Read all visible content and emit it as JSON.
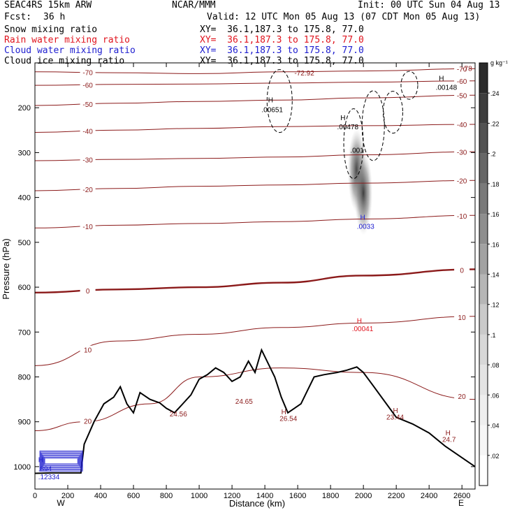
{
  "header": {
    "model": "SEAC4RS 15km ARW",
    "center": "NCAR/MMM",
    "init": "Init: 00 UTC Sun 04 Aug 13",
    "fcst_label": "Fcst:",
    "fcst_value": "36 h",
    "valid": "Valid: 12 UTC Mon 05 Aug 13 (07 CDT Mon 05 Aug 13)",
    "fields": [
      {
        "name": "Snow mixing ratio",
        "color": "#000000",
        "xy": "XY=  36.1,187.3 to 175.8, 77.0"
      },
      {
        "name": "Rain water mixing ratio",
        "color": "#e0141e",
        "xy": "XY=  36.1,187.3 to 175.8, 77.0"
      },
      {
        "name": "Cloud water mixing ratio",
        "color": "#2020d0",
        "xy": "XY=  36.1,187.3 to 175.8, 77.0"
      },
      {
        "name": "Cloud ice mixing ratio",
        "color": "#000000",
        "xy": "XY=  36.1,187.3 to 175.8, 77.0"
      }
    ]
  },
  "chart_data": {
    "type": "cross-section contour",
    "xlabel": "Distance (km)",
    "ylabel": "Pressure (hPa)",
    "xlim": [
      0,
      2680
    ],
    "ylim": [
      1050,
      100
    ],
    "x_ticks": [
      0,
      200,
      400,
      600,
      800,
      1000,
      1200,
      1400,
      1600,
      1800,
      2000,
      2200,
      2400,
      2600
    ],
    "y_ticks": [
      200,
      300,
      400,
      500,
      600,
      700,
      800,
      900,
      1000
    ],
    "end_labels": {
      "left": "W",
      "right": "E"
    },
    "temperature_isotherms_C": {
      "color": "#8b1a1a",
      "levels": [
        -70,
        -60,
        -50,
        -40,
        -30,
        -20,
        -10,
        0,
        10,
        20
      ],
      "labels": [
        "-70",
        "-60",
        "-50",
        "-40",
        "-30",
        "-20",
        "-10",
        "0",
        "10",
        "20"
      ],
      "pressure_hPa": [
        {
          "level": -70,
          "points": [
            [
              0,
              120
            ],
            [
              500,
              122
            ],
            [
              1000,
              124
            ],
            [
              1500,
              120
            ],
            [
              2000,
              118
            ],
            [
              2680,
              113
            ]
          ]
        },
        {
          "level": -60,
          "points": [
            [
              0,
              150
            ],
            [
              500,
              148
            ],
            [
              1000,
              147
            ],
            [
              1500,
              145
            ],
            [
              2000,
              143
            ],
            [
              2680,
              140
            ]
          ]
        },
        {
          "level": -50,
          "points": [
            [
              0,
              195
            ],
            [
              500,
              190
            ],
            [
              1000,
              186
            ],
            [
              1500,
              183
            ],
            [
              2000,
              178
            ],
            [
              2680,
              172
            ]
          ]
        },
        {
          "level": -40,
          "points": [
            [
              0,
              255
            ],
            [
              500,
              250
            ],
            [
              1000,
              246
            ],
            [
              1500,
              242
            ],
            [
              2000,
              240
            ],
            [
              2680,
              237
            ]
          ]
        },
        {
          "level": -30,
          "points": [
            [
              0,
              318
            ],
            [
              500,
              315
            ],
            [
              1000,
              313
            ],
            [
              1500,
              310
            ],
            [
              2000,
              305
            ],
            [
              2680,
              298
            ]
          ]
        },
        {
          "level": -20,
          "points": [
            [
              0,
              385
            ],
            [
              500,
              380
            ],
            [
              1000,
              375
            ],
            [
              1500,
              372
            ],
            [
              2000,
              368
            ],
            [
              2680,
              362
            ]
          ]
        },
        {
          "level": -10,
          "points": [
            [
              0,
              468
            ],
            [
              500,
              462
            ],
            [
              1000,
              458
            ],
            [
              1500,
              454
            ],
            [
              2000,
              448
            ],
            [
              2680,
              440
            ]
          ]
        },
        {
          "level": 0,
          "points": [
            [
              0,
              612
            ],
            [
              500,
              605
            ],
            [
              1000,
              600
            ],
            [
              1500,
              590
            ],
            [
              2000,
              574
            ],
            [
              2680,
              560
            ]
          ]
        },
        {
          "level": 10,
          "points": [
            [
              0,
              775
            ],
            [
              500,
              720
            ],
            [
              1000,
              705
            ],
            [
              1500,
              690
            ],
            [
              2000,
              680
            ],
            [
              2680,
              665
            ]
          ]
        },
        {
          "level": 20,
          "points": [
            [
              0,
              920
            ],
            [
              300,
              900
            ],
            [
              700,
              860
            ],
            [
              1000,
              800
            ],
            [
              1500,
              780
            ],
            [
              2000,
              790
            ],
            [
              2680,
              850
            ]
          ]
        }
      ]
    },
    "cloud_ice_max_labels": [
      "H",
      ".00651",
      "H",
      ".00478",
      ".001",
      "H",
      ".00148"
    ],
    "cloud_water_labels": [
      "H",
      ".0033",
      "H",
      ".894",
      ".12334"
    ],
    "rain_water_labels": [
      "H",
      ".00041"
    ],
    "terrain_minima_labels": [
      "24.56",
      "24.65",
      "H",
      "26.54",
      "H",
      "23.44",
      "H",
      "24.7"
    ],
    "terrain_profile_hPa": [
      [
        0,
        1015
      ],
      [
        100,
        1014
      ],
      [
        200,
        1014
      ],
      [
        280,
        1014
      ],
      [
        300,
        950
      ],
      [
        360,
        900
      ],
      [
        420,
        860
      ],
      [
        480,
        845
      ],
      [
        520,
        822
      ],
      [
        560,
        860
      ],
      [
        600,
        880
      ],
      [
        640,
        835
      ],
      [
        700,
        850
      ],
      [
        760,
        858
      ],
      [
        800,
        870
      ],
      [
        850,
        880
      ],
      [
        900,
        860
      ],
      [
        950,
        840
      ],
      [
        1000,
        805
      ],
      [
        1050,
        795
      ],
      [
        1100,
        780
      ],
      [
        1150,
        790
      ],
      [
        1200,
        810
      ],
      [
        1250,
        800
      ],
      [
        1300,
        765
      ],
      [
        1340,
        790
      ],
      [
        1380,
        740
      ],
      [
        1420,
        770
      ],
      [
        1460,
        800
      ],
      [
        1500,
        845
      ],
      [
        1540,
        880
      ],
      [
        1580,
        870
      ],
      [
        1620,
        860
      ],
      [
        1660,
        830
      ],
      [
        1700,
        800
      ],
      [
        1760,
        795
      ],
      [
        1840,
        790
      ],
      [
        1900,
        785
      ],
      [
        1960,
        778
      ],
      [
        2000,
        790
      ],
      [
        2060,
        820
      ],
      [
        2120,
        850
      ],
      [
        2200,
        890
      ],
      [
        2300,
        905
      ],
      [
        2400,
        925
      ],
      [
        2500,
        955
      ],
      [
        2600,
        980
      ],
      [
        2680,
        1000
      ]
    ],
    "shaded_snow_max_hPa": [
      {
        "x": 1960,
        "p": 340
      },
      {
        "x": 2000,
        "p": 390
      }
    ],
    "colorbar": {
      "unit": "g kg⁻¹",
      "labels": [
        ".24",
        ".22",
        ".2",
        ".18",
        ".16",
        ".16",
        ".14",
        ".12",
        ".1",
        ".08",
        ".06",
        ".04",
        ".02"
      ],
      "colors": [
        "#2b2b2b",
        "#3e3e3e",
        "#525252",
        "#666666",
        "#7a7a7a",
        "#8e8e8e",
        "#a2a2a2",
        "#b6b6b6",
        "#cacaca",
        "#d8d8d8",
        "#e4e4e4",
        "#eeeeee",
        "#f6f6f6",
        "#ffffff"
      ]
    },
    "extra_labels": {
      "top_value": "-72.92",
      "top_right_value": "-78"
    }
  }
}
